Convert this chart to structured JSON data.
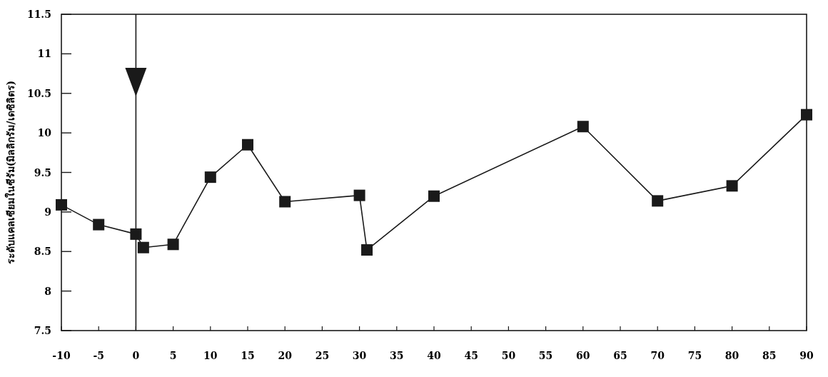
{
  "chart_data": {
    "type": "line",
    "ylabel": "ระดับแคลเซียมในซีรัม(มิลลิกรัม/เดซิลิตร)",
    "x": [
      -10,
      -5,
      0,
      1,
      5,
      10,
      15,
      20,
      30,
      31,
      40,
      60,
      70,
      80,
      90
    ],
    "values": [
      9.09,
      8.84,
      8.72,
      8.55,
      8.59,
      9.44,
      9.85,
      9.13,
      9.21,
      8.52,
      9.2,
      10.08,
      9.14,
      9.33,
      10.23
    ],
    "color": "#1a1a1a",
    "marker": "square",
    "line_style": "solid",
    "xlim": [
      -10,
      90
    ],
    "ylim": [
      7.5,
      11.5
    ],
    "xticks": [
      -10,
      -5,
      0,
      5,
      10,
      15,
      20,
      25,
      30,
      35,
      40,
      45,
      50,
      55,
      60,
      65,
      70,
      75,
      80,
      85,
      90
    ],
    "yticks": [
      7.5,
      8,
      8.5,
      9,
      9.5,
      10,
      10.5,
      11,
      11.5
    ],
    "ref_lines": [
      {
        "axis": "x",
        "value": 0,
        "color": "#1a1a1a"
      }
    ]
  }
}
